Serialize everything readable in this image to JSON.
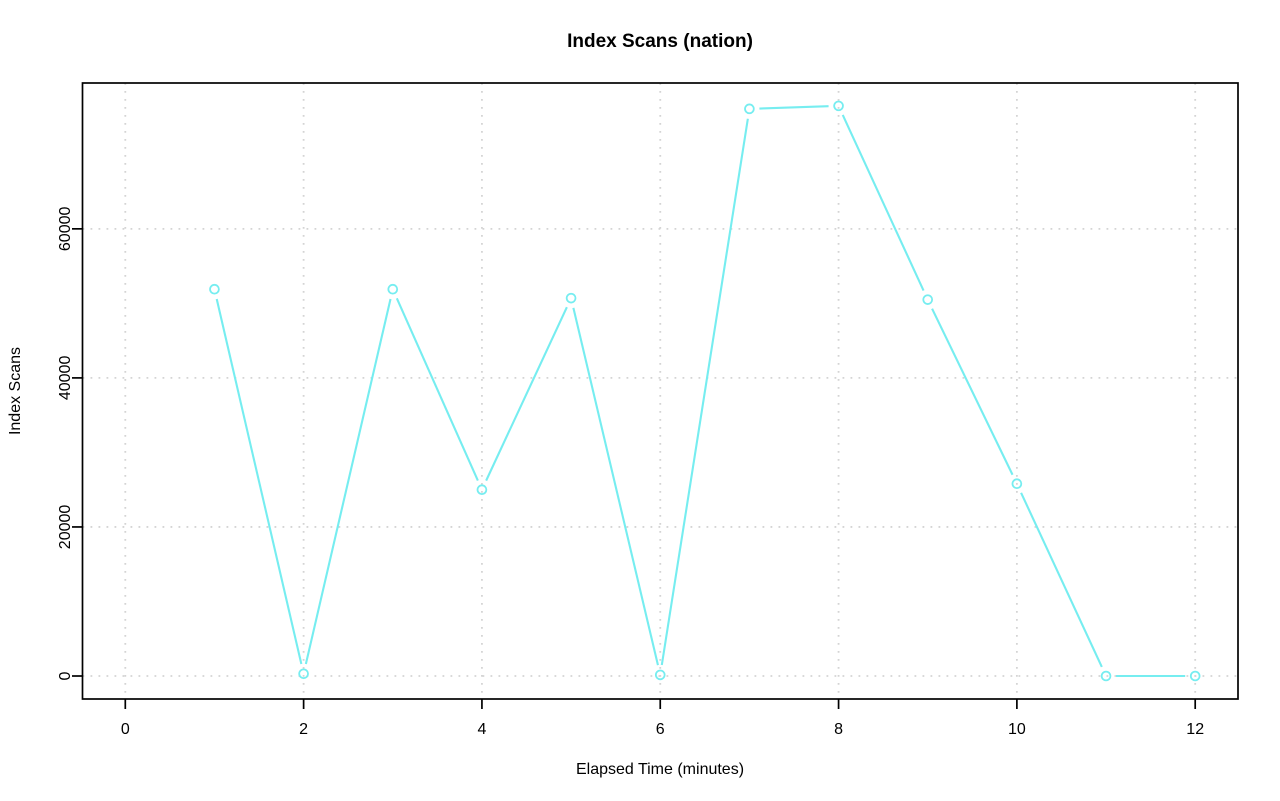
{
  "chart_data": {
    "type": "line",
    "title": "Index Scans (nation)",
    "xlabel": "Elapsed Time (minutes)",
    "ylabel": "Index Scans",
    "x": [
      1,
      2,
      3,
      4,
      5,
      6,
      7,
      8,
      9,
      10,
      11,
      12
    ],
    "values": [
      51900,
      300,
      51900,
      25000,
      50700,
      150,
      76100,
      76500,
      50500,
      25800,
      0,
      0
    ],
    "xticks": [
      0,
      2,
      4,
      6,
      8,
      10,
      12
    ],
    "yticks": [
      0,
      20000,
      40000,
      60000
    ],
    "xlim": [
      -0.48,
      12.48
    ],
    "ylim": [
      -3085,
      79570
    ],
    "grid": "dotted",
    "legend": "none",
    "series_name": "index-scans-nation",
    "series_color": "#76EDF0",
    "grid_color": "#d4d4d4",
    "axis_color": "#000000",
    "background_color": "#ffffff",
    "marker": "open-circle",
    "line_type": "segments-with-point-gaps"
  }
}
